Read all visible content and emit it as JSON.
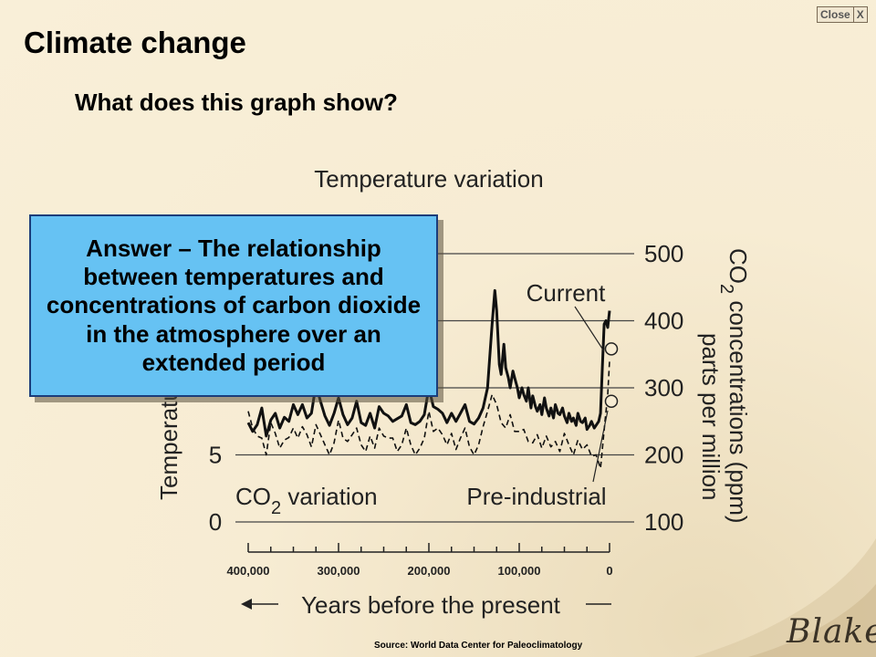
{
  "window": {
    "close_label": "Close",
    "close_x": "X"
  },
  "slide": {
    "title": "Climate change",
    "question": "What does this graph show?",
    "answer": "Answer – The relationship between temperatures and concentrations of carbon dioxide in the atmosphere over an extended period",
    "source": "Source: World Data Center for Paleoclimatology",
    "signature": "Blake"
  },
  "chart_data": {
    "type": "line",
    "title": "Temperature variation",
    "xlabel": "Years before the present",
    "ylabel_left": "Temperature",
    "ylabel_right_main": "CO",
    "ylabel_right_sub": "2",
    "ylabel_right_rest": " concentrations (ppm)",
    "ylabel_right_line2": "parts per million",
    "x_ticks": [
      "400,000",
      "300,000",
      "200,000",
      "100,000",
      "0"
    ],
    "x_tick_values": [
      400000,
      300000,
      200000,
      100000,
      0
    ],
    "y_left_ticks": [
      "0",
      "5"
    ],
    "y_left_tick_values": [
      0,
      5
    ],
    "y_right_ticks": [
      "100",
      "200",
      "300",
      "400",
      "500"
    ],
    "y_right_tick_values": [
      100,
      200,
      300,
      400,
      500
    ],
    "ylim_right": [
      100,
      500
    ],
    "annotations": {
      "current": "Current",
      "pre_industrial": "Pre-industrial",
      "co2_variation_main": "CO",
      "co2_variation_sub": "2",
      "co2_variation_rest": " variation"
    },
    "grid": true,
    "series": [
      {
        "style": "solid",
        "x": [
          400000,
          395000,
          390000,
          385000,
          380000,
          375000,
          370000,
          365000,
          360000,
          355000,
          350000,
          345000,
          340000,
          335000,
          330000,
          325000,
          320000,
          315000,
          310000,
          305000,
          300000,
          295000,
          290000,
          285000,
          280000,
          275000,
          270000,
          265000,
          260000,
          255000,
          250000,
          245000,
          240000,
          235000,
          230000,
          225000,
          220000,
          215000,
          210000,
          205000,
          200000,
          195000,
          190000,
          185000,
          180000,
          175000,
          170000,
          165000,
          160000,
          155000,
          150000,
          145000,
          140000,
          135000,
          130000,
          127000,
          125000,
          122000,
          120000,
          117000,
          115000,
          112000,
          110000,
          107000,
          105000,
          102000,
          100000,
          97000,
          95000,
          92000,
          90000,
          87000,
          85000,
          82000,
          80000,
          77000,
          75000,
          72000,
          70000,
          67000,
          65000,
          62000,
          60000,
          57000,
          55000,
          52000,
          50000,
          47000,
          45000,
          42000,
          40000,
          37000,
          35000,
          32000,
          30000,
          27000,
          25000,
          22000,
          20000,
          17000,
          15000,
          12000,
          10000,
          8000,
          6000,
          4000,
          2000,
          0
        ],
        "y": [
          248,
          235,
          245,
          270,
          228,
          252,
          262,
          240,
          256,
          250,
          275,
          260,
          275,
          255,
          262,
          305,
          280,
          258,
          244,
          262,
          285,
          260,
          245,
          255,
          280,
          248,
          244,
          262,
          240,
          272,
          262,
          258,
          250,
          254,
          258,
          275,
          248,
          245,
          250,
          260,
          300,
          272,
          268,
          262,
          248,
          262,
          250,
          262,
          275,
          250,
          246,
          255,
          270,
          300,
          395,
          445,
          415,
          335,
          320,
          365,
          330,
          315,
          300,
          325,
          315,
          300,
          285,
          300,
          290,
          280,
          300,
          270,
          288,
          272,
          265,
          275,
          260,
          285,
          270,
          258,
          270,
          255,
          275,
          262,
          260,
          270,
          258,
          248,
          262,
          250,
          255,
          244,
          262,
          250,
          248,
          255,
          238,
          244,
          250,
          240,
          244,
          250,
          262,
          330,
          395,
          400,
          390,
          415
        ]
      },
      {
        "style": "dashed",
        "x": [
          400000,
          395000,
          390000,
          385000,
          380000,
          375000,
          370000,
          365000,
          360000,
          355000,
          350000,
          345000,
          340000,
          335000,
          330000,
          325000,
          320000,
          315000,
          310000,
          305000,
          300000,
          295000,
          290000,
          285000,
          280000,
          275000,
          270000,
          265000,
          260000,
          255000,
          250000,
          245000,
          240000,
          235000,
          230000,
          225000,
          220000,
          215000,
          210000,
          205000,
          200000,
          195000,
          190000,
          185000,
          180000,
          175000,
          170000,
          165000,
          160000,
          155000,
          150000,
          145000,
          140000,
          135000,
          130000,
          125000,
          120000,
          115000,
          110000,
          105000,
          100000,
          95000,
          90000,
          85000,
          80000,
          75000,
          70000,
          65000,
          60000,
          55000,
          50000,
          45000,
          40000,
          35000,
          30000,
          25000,
          20000,
          15000,
          10000,
          5000,
          2000,
          0
        ],
        "y": [
          265,
          240,
          228,
          225,
          200,
          248,
          232,
          210,
          222,
          226,
          240,
          225,
          242,
          230,
          212,
          245,
          230,
          215,
          200,
          218,
          252,
          225,
          220,
          230,
          240,
          215,
          205,
          228,
          210,
          240,
          228,
          225,
          225,
          205,
          215,
          240,
          215,
          200,
          210,
          225,
          265,
          235,
          240,
          230,
          215,
          232,
          208,
          225,
          240,
          212,
          200,
          215,
          242,
          265,
          290,
          275,
          248,
          240,
          260,
          235,
          235,
          238,
          220,
          218,
          230,
          210,
          228,
          212,
          220,
          205,
          232,
          215,
          200,
          222,
          208,
          215,
          198,
          200,
          180,
          250,
          290,
          340
        ]
      }
    ],
    "markers": [
      {
        "x": 0,
        "y": 358
      },
      {
        "x": 0,
        "y": 280
      }
    ]
  }
}
